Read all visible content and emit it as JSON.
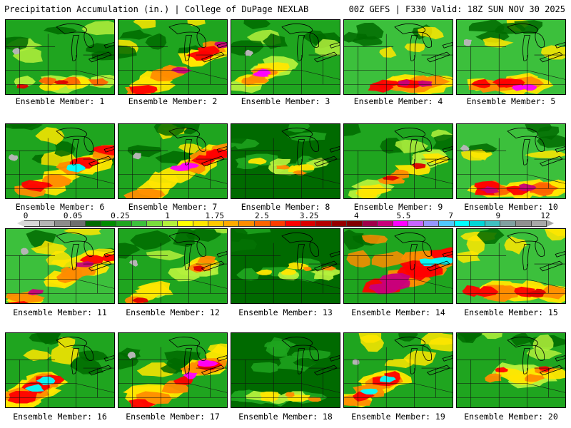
{
  "header": {
    "left": "Precipitation Accumulation (in.) | College of DuPage NEXLAB",
    "right": "00Z GEFS | F330 Valid: 18Z SUN NOV 30 2025"
  },
  "legend": {
    "labels": [
      "0",
      "0.05",
      "0.25",
      "1",
      "1.75",
      "2.5",
      "3.25",
      "4",
      "5.5",
      "7",
      "9",
      "12"
    ],
    "colors": [
      "#d8d8d8",
      "#b5b5b5",
      "#8c8c8c",
      "#6e6e6e",
      "#006a00",
      "#008c00",
      "#1fa51f",
      "#3cc03c",
      "#78dc3c",
      "#b4f03c",
      "#ffff00",
      "#ffe600",
      "#ffc800",
      "#ffaa00",
      "#ff8c00",
      "#ff6400",
      "#ff3c00",
      "#ff0000",
      "#dc0000",
      "#b40000",
      "#960000",
      "#800000",
      "#a0004a",
      "#c8007a",
      "#ff00ff",
      "#c864ff",
      "#9696ff",
      "#50c8ff",
      "#00ffff",
      "#00d7d7",
      "#40c0c0",
      "#80a0a0",
      "#909090",
      "#a8a8a8"
    ]
  },
  "members": [
    {
      "caption": "Ensemble Member: 1",
      "wet": 0.35,
      "band": "low",
      "colors": [
        "#1fa51f",
        "#b4f03c",
        "#ffe600",
        "#ff6400",
        "#dc0000"
      ]
    },
    {
      "caption": "Ensemble Member: 2",
      "wet": 0.55,
      "band": "diag",
      "colors": [
        "#1fa51f",
        "#ffe600",
        "#ff8c00",
        "#ff0000",
        "#c8007a"
      ]
    },
    {
      "caption": "Ensemble Member: 3",
      "wet": 0.45,
      "band": "sw",
      "colors": [
        "#1fa51f",
        "#b4f03c",
        "#ffe600",
        "#ff8c00",
        "#ff00ff"
      ]
    },
    {
      "caption": "Ensemble Member: 4",
      "wet": 0.5,
      "band": "low",
      "colors": [
        "#3cc03c",
        "#ffe600",
        "#ff8c00",
        "#ff0000",
        "#c8007a"
      ]
    },
    {
      "caption": "Ensemble Member: 5",
      "wet": 0.5,
      "band": "low",
      "colors": [
        "#3cc03c",
        "#ffe600",
        "#ff8c00",
        "#ff0000",
        "#ff00ff"
      ]
    },
    {
      "caption": "Ensemble Member: 6",
      "wet": 0.6,
      "band": "diag",
      "colors": [
        "#1fa51f",
        "#ffe600",
        "#ff8c00",
        "#ff0000",
        "#00ffff"
      ]
    },
    {
      "caption": "Ensemble Member: 7",
      "wet": 0.6,
      "band": "diag",
      "colors": [
        "#1fa51f",
        "#ffe600",
        "#ff8c00",
        "#ff0000",
        "#ff00ff"
      ]
    },
    {
      "caption": "Ensemble Member: 8",
      "wet": 0.3,
      "band": "mid",
      "colors": [
        "#006a00",
        "#1fa51f",
        "#b4f03c",
        "#ffe600",
        "#ff8c00"
      ]
    },
    {
      "caption": "Ensemble Member: 9",
      "wet": 0.45,
      "band": "diag",
      "colors": [
        "#1fa51f",
        "#b4f03c",
        "#ffe600",
        "#ff8c00",
        "#dc0000"
      ]
    },
    {
      "caption": "Ensemble Member: 10",
      "wet": 0.55,
      "band": "low",
      "colors": [
        "#3cc03c",
        "#ffe600",
        "#ff6400",
        "#ff0000",
        "#c8007a"
      ]
    },
    {
      "caption": "Ensemble Member: 11",
      "wet": 0.5,
      "band": "diag",
      "colors": [
        "#3cc03c",
        "#ffe600",
        "#ff8c00",
        "#ff0000",
        "#c8007a"
      ]
    },
    {
      "caption": "Ensemble Member: 12",
      "wet": 0.45,
      "band": "diag",
      "colors": [
        "#1fa51f",
        "#b4f03c",
        "#ffe600",
        "#ff8c00",
        "#dc0000"
      ]
    },
    {
      "caption": "Ensemble Member: 13",
      "wet": 0.3,
      "band": "mid",
      "colors": [
        "#006a00",
        "#1fa51f",
        "#b4f03c",
        "#ffe600",
        "#ff8c00"
      ]
    },
    {
      "caption": "Ensemble Member: 14",
      "wet": 0.7,
      "band": "diag",
      "colors": [
        "#1fa51f",
        "#ff8c00",
        "#ff0000",
        "#c8007a",
        "#00ffff"
      ]
    },
    {
      "caption": "Ensemble Member: 15",
      "wet": 0.6,
      "band": "low",
      "colors": [
        "#3cc03c",
        "#ffe600",
        "#ff8c00",
        "#ff0000",
        "#dc0000"
      ]
    },
    {
      "caption": "Ensemble Member: 16",
      "wet": 0.7,
      "band": "sw",
      "colors": [
        "#1fa51f",
        "#ffe600",
        "#ff8c00",
        "#ff0000",
        "#00ffff"
      ]
    },
    {
      "caption": "Ensemble Member: 17",
      "wet": 0.6,
      "band": "diag",
      "colors": [
        "#1fa51f",
        "#ffe600",
        "#ff8c00",
        "#ff0000",
        "#ff00ff"
      ]
    },
    {
      "caption": "Ensemble Member: 18",
      "wet": 0.35,
      "band": "low",
      "colors": [
        "#006a00",
        "#1fa51f",
        "#b4f03c",
        "#ffe600",
        "#ff8c00"
      ]
    },
    {
      "caption": "Ensemble Member: 19",
      "wet": 0.55,
      "band": "sw",
      "colors": [
        "#1fa51f",
        "#ffe600",
        "#ff8c00",
        "#ff0000",
        "#00ffff"
      ]
    },
    {
      "caption": "Ensemble Member: 20",
      "wet": 0.45,
      "band": "mid",
      "colors": [
        "#1fa51f",
        "#b4f03c",
        "#ffe600",
        "#ff8c00",
        "#ff0000"
      ]
    }
  ]
}
